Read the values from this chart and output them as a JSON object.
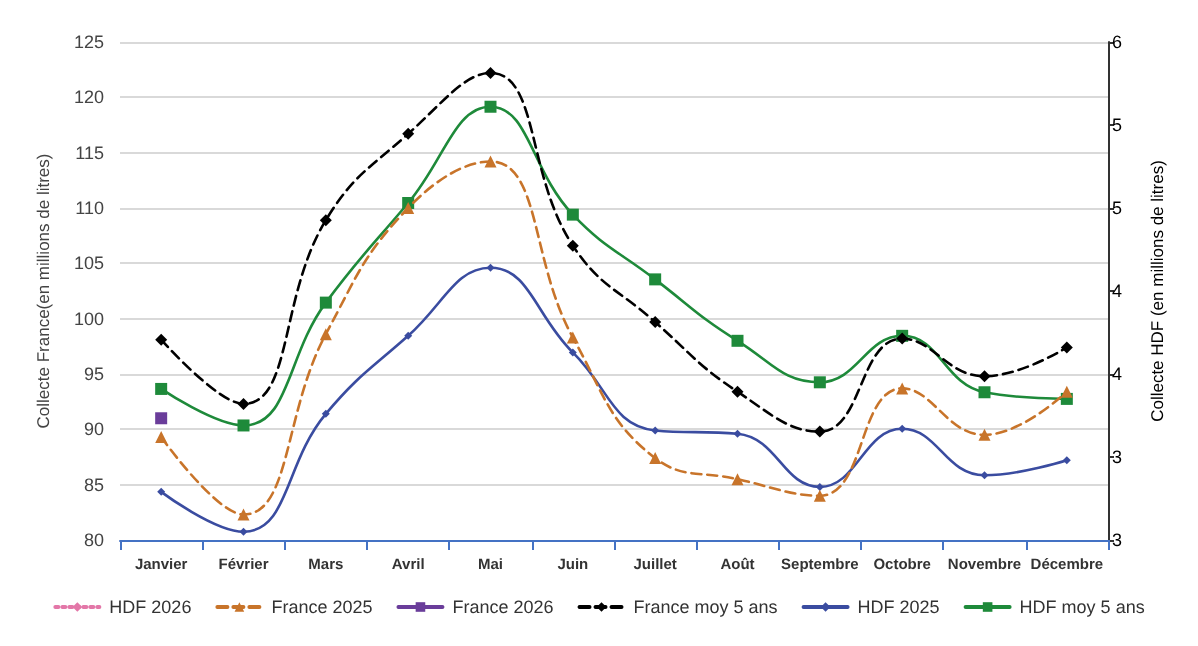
{
  "chart_data": {
    "type": "line",
    "categories": [
      "Janvier",
      "Février",
      "Mars",
      "Avril",
      "Mai",
      "Juin",
      "Juillet",
      "Août",
      "Septembre",
      "Octobre",
      "Novembre",
      "Décembre"
    ],
    "ylabel": "Collecte France(en millions de litres)",
    "y2label": "Collecte HDF (en millions de litres)",
    "ylim": [
      80,
      125
    ],
    "yticks": [
      80,
      85,
      90,
      95,
      100,
      105,
      110,
      115,
      120,
      125
    ],
    "y2lim": [
      3,
      6
    ],
    "y2ticks": [
      3,
      {
        "value": 3.5,
        "label": "3"
      },
      4,
      {
        "value": 4.5,
        "label": "4"
      },
      5,
      {
        "value": 5.5,
        "label": "5"
      },
      6
    ],
    "grid": "y",
    "legend": "bottom",
    "series": [
      {
        "name": "HDF 2026",
        "color": "#e377a8",
        "axis": "y2",
        "marker": "diamond",
        "line_style": "dotted",
        "values": [
          null,
          null,
          null,
          null,
          null,
          null,
          null,
          null,
          null,
          null,
          null,
          null
        ]
      },
      {
        "name": "France 2025",
        "color": "#c8742a",
        "marker": "triangle",
        "line_style": "dashed",
        "values": [
          89.3,
          82.3,
          98.6,
          110.0,
          114.2,
          98.3,
          87.4,
          85.5,
          84.0,
          93.7,
          89.5,
          93.4
        ]
      },
      {
        "name": "France 2026",
        "color": "#6a3d9a",
        "marker": "square",
        "line_style": "solid",
        "values": [
          91,
          null,
          null,
          null,
          null,
          null,
          null,
          null,
          null,
          null,
          null,
          null
        ]
      },
      {
        "name": "France moy 5 ans",
        "color": "#000000",
        "marker": "diamond",
        "line_style": "dashed",
        "values": [
          98.1,
          92.3,
          108.9,
          116.7,
          122.2,
          106.6,
          99.7,
          93.4,
          89.8,
          98.2,
          94.8,
          97.4
        ]
      },
      {
        "name": "HDF 2025",
        "color": "#3a4ca0",
        "axis": "y2",
        "marker": "diamond",
        "line_style": "solid",
        "values": [
          3.29,
          3.05,
          3.76,
          4.23,
          4.64,
          4.13,
          3.66,
          3.64,
          3.32,
          3.67,
          3.39,
          3.48
        ]
      },
      {
        "name": "HDF moy 5 ans",
        "color": "#1e8a3a",
        "axis": "y2",
        "marker": "square",
        "line_style": "solid",
        "values": [
          3.91,
          3.69,
          4.43,
          5.03,
          5.61,
          4.96,
          4.57,
          4.2,
          3.95,
          4.23,
          3.89,
          3.85
        ]
      }
    ]
  }
}
